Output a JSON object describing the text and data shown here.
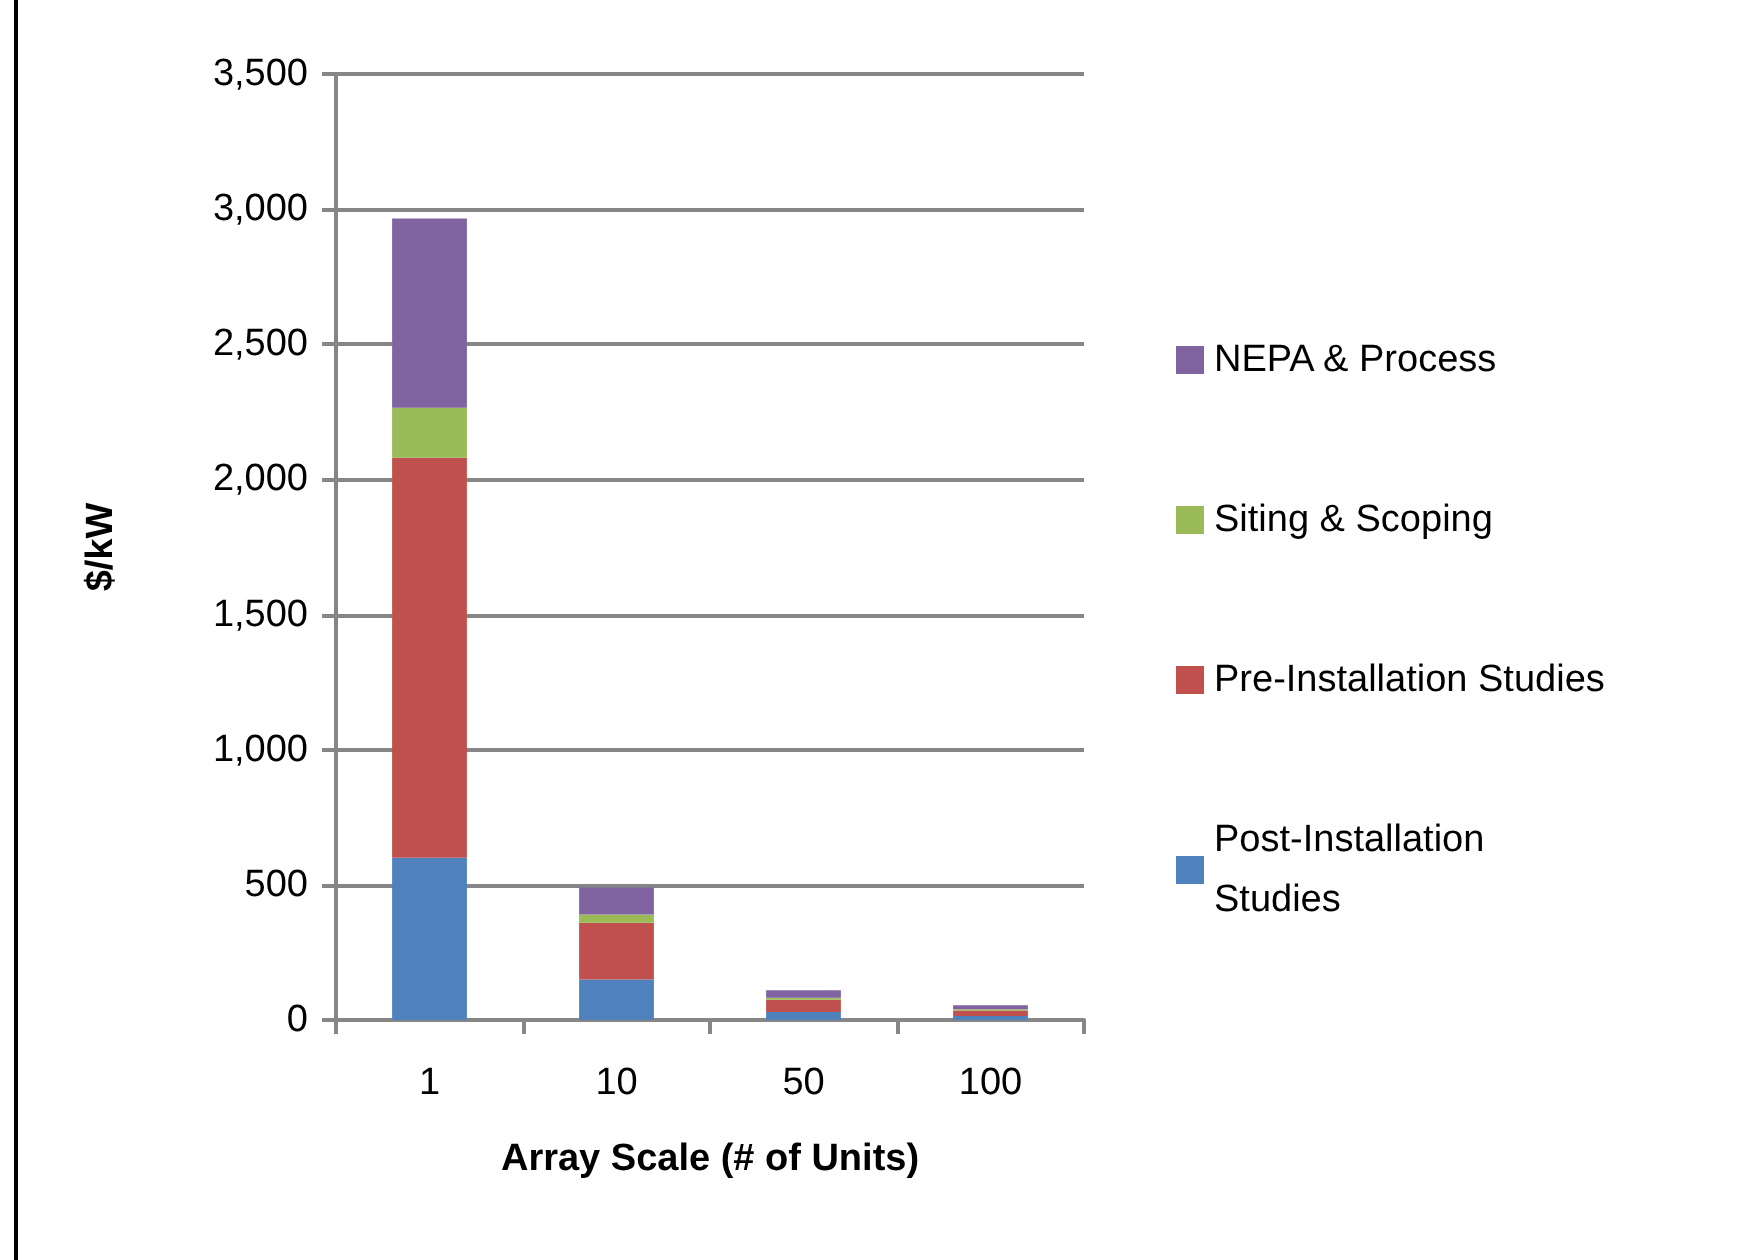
{
  "chart_data": {
    "type": "bar",
    "stacked": true,
    "xlabel": "Array Scale (# of Units)",
    "ylabel": "$/kW",
    "categories": [
      "1",
      "10",
      "50",
      "100"
    ],
    "series": [
      {
        "name": "Post-Installation Studies",
        "color": "#4f81bd",
        "values": [
          600,
          150,
          30,
          15
        ]
      },
      {
        "name": "Pre-Installation Studies",
        "color": "#c0504d",
        "values": [
          1480,
          210,
          45,
          20
        ]
      },
      {
        "name": "Siting & Scoping",
        "color": "#9bbb59",
        "values": [
          185,
          30,
          7,
          5
        ]
      },
      {
        "name": "NEPA & Process",
        "color": "#8064a2",
        "values": [
          700,
          100,
          28,
          15
        ]
      }
    ],
    "ylim": [
      0,
      3500
    ],
    "yticks": [
      0,
      500,
      {
        "value": 1000,
        "label": "1,000"
      },
      {
        "value": 1500,
        "label": "1,500"
      },
      {
        "value": 2000,
        "label": "2,000"
      },
      {
        "value": 2500,
        "label": "2,500"
      },
      {
        "value": 3000,
        "label": "3,000"
      },
      {
        "value": 3500,
        "label": "3,500"
      }
    ],
    "grid": "y",
    "legend": "right"
  }
}
